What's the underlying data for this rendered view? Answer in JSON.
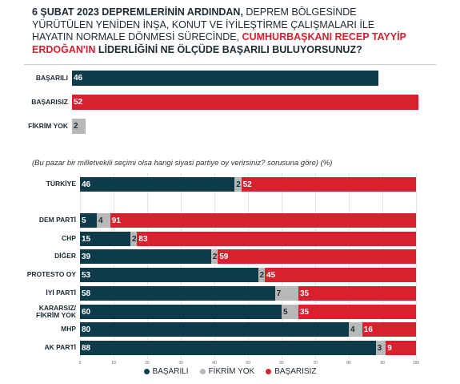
{
  "chart_data": [
    {
      "type": "bar",
      "orientation": "horizontal",
      "title_parts": [
        "6 ŞUBAT 2023 DEPREMLERİNİN ARDINDAN,",
        "DEPREM BÖLGESİNDE YÜRÜTÜLEN YENİDEN İNŞA, KONUT VE İYİLEŞTİRME ÇALIŞMALARI İLE HAYATIN NORMALE DÖNMESİ SÜRECİNDE,",
        "CUMHURBAŞKANI RECEP TAYYİP ERDOĞAN'IN",
        "LİDERLİĞİNİ NE ÖLÇÜDE BAŞARILI BULUYORSUNUZ?"
      ],
      "categories": [
        "BAŞARILI",
        "BAŞARISIZ",
        "FİKRİM YOK"
      ],
      "values": [
        46,
        52,
        2
      ],
      "colors": [
        "#0d3b4a",
        "#d9202f",
        "#b8b8b8"
      ]
    },
    {
      "type": "stacked_bar",
      "orientation": "horizontal",
      "subtitle": "(Bu pazar bir milletvekili seçimi olsa hangi siyasi partiye oy verirsiniz? sorusuna göre) (%)",
      "categories": [
        "TÜRKİYE",
        "DEM PARTİ",
        "CHP",
        "DİĞER",
        "PROTESTO OY",
        "İYİ PARTİ",
        "KARARSIZ/ FİKRİM YOK",
        "MHP",
        "AK PARTİ"
      ],
      "series": [
        {
          "name": "BAŞARILI",
          "color": "#0d3b4a",
          "values": [
            46,
            5,
            15,
            39,
            53,
            58,
            60,
            80,
            88
          ]
        },
        {
          "name": "FİKRİM YOK",
          "color": "#b8b8b8",
          "values": [
            2,
            4,
            2,
            2,
            2,
            7,
            5,
            4,
            3
          ]
        },
        {
          "name": "BAŞARISIZ",
          "color": "#d9202f",
          "values": [
            52,
            91,
            83,
            59,
            45,
            35,
            35,
            16,
            9
          ]
        }
      ],
      "xlim": [
        0,
        100
      ],
      "xticks": [
        0,
        10,
        20,
        30,
        40,
        50,
        60,
        70,
        80,
        90,
        100
      ],
      "legend": "bottom"
    }
  ]
}
